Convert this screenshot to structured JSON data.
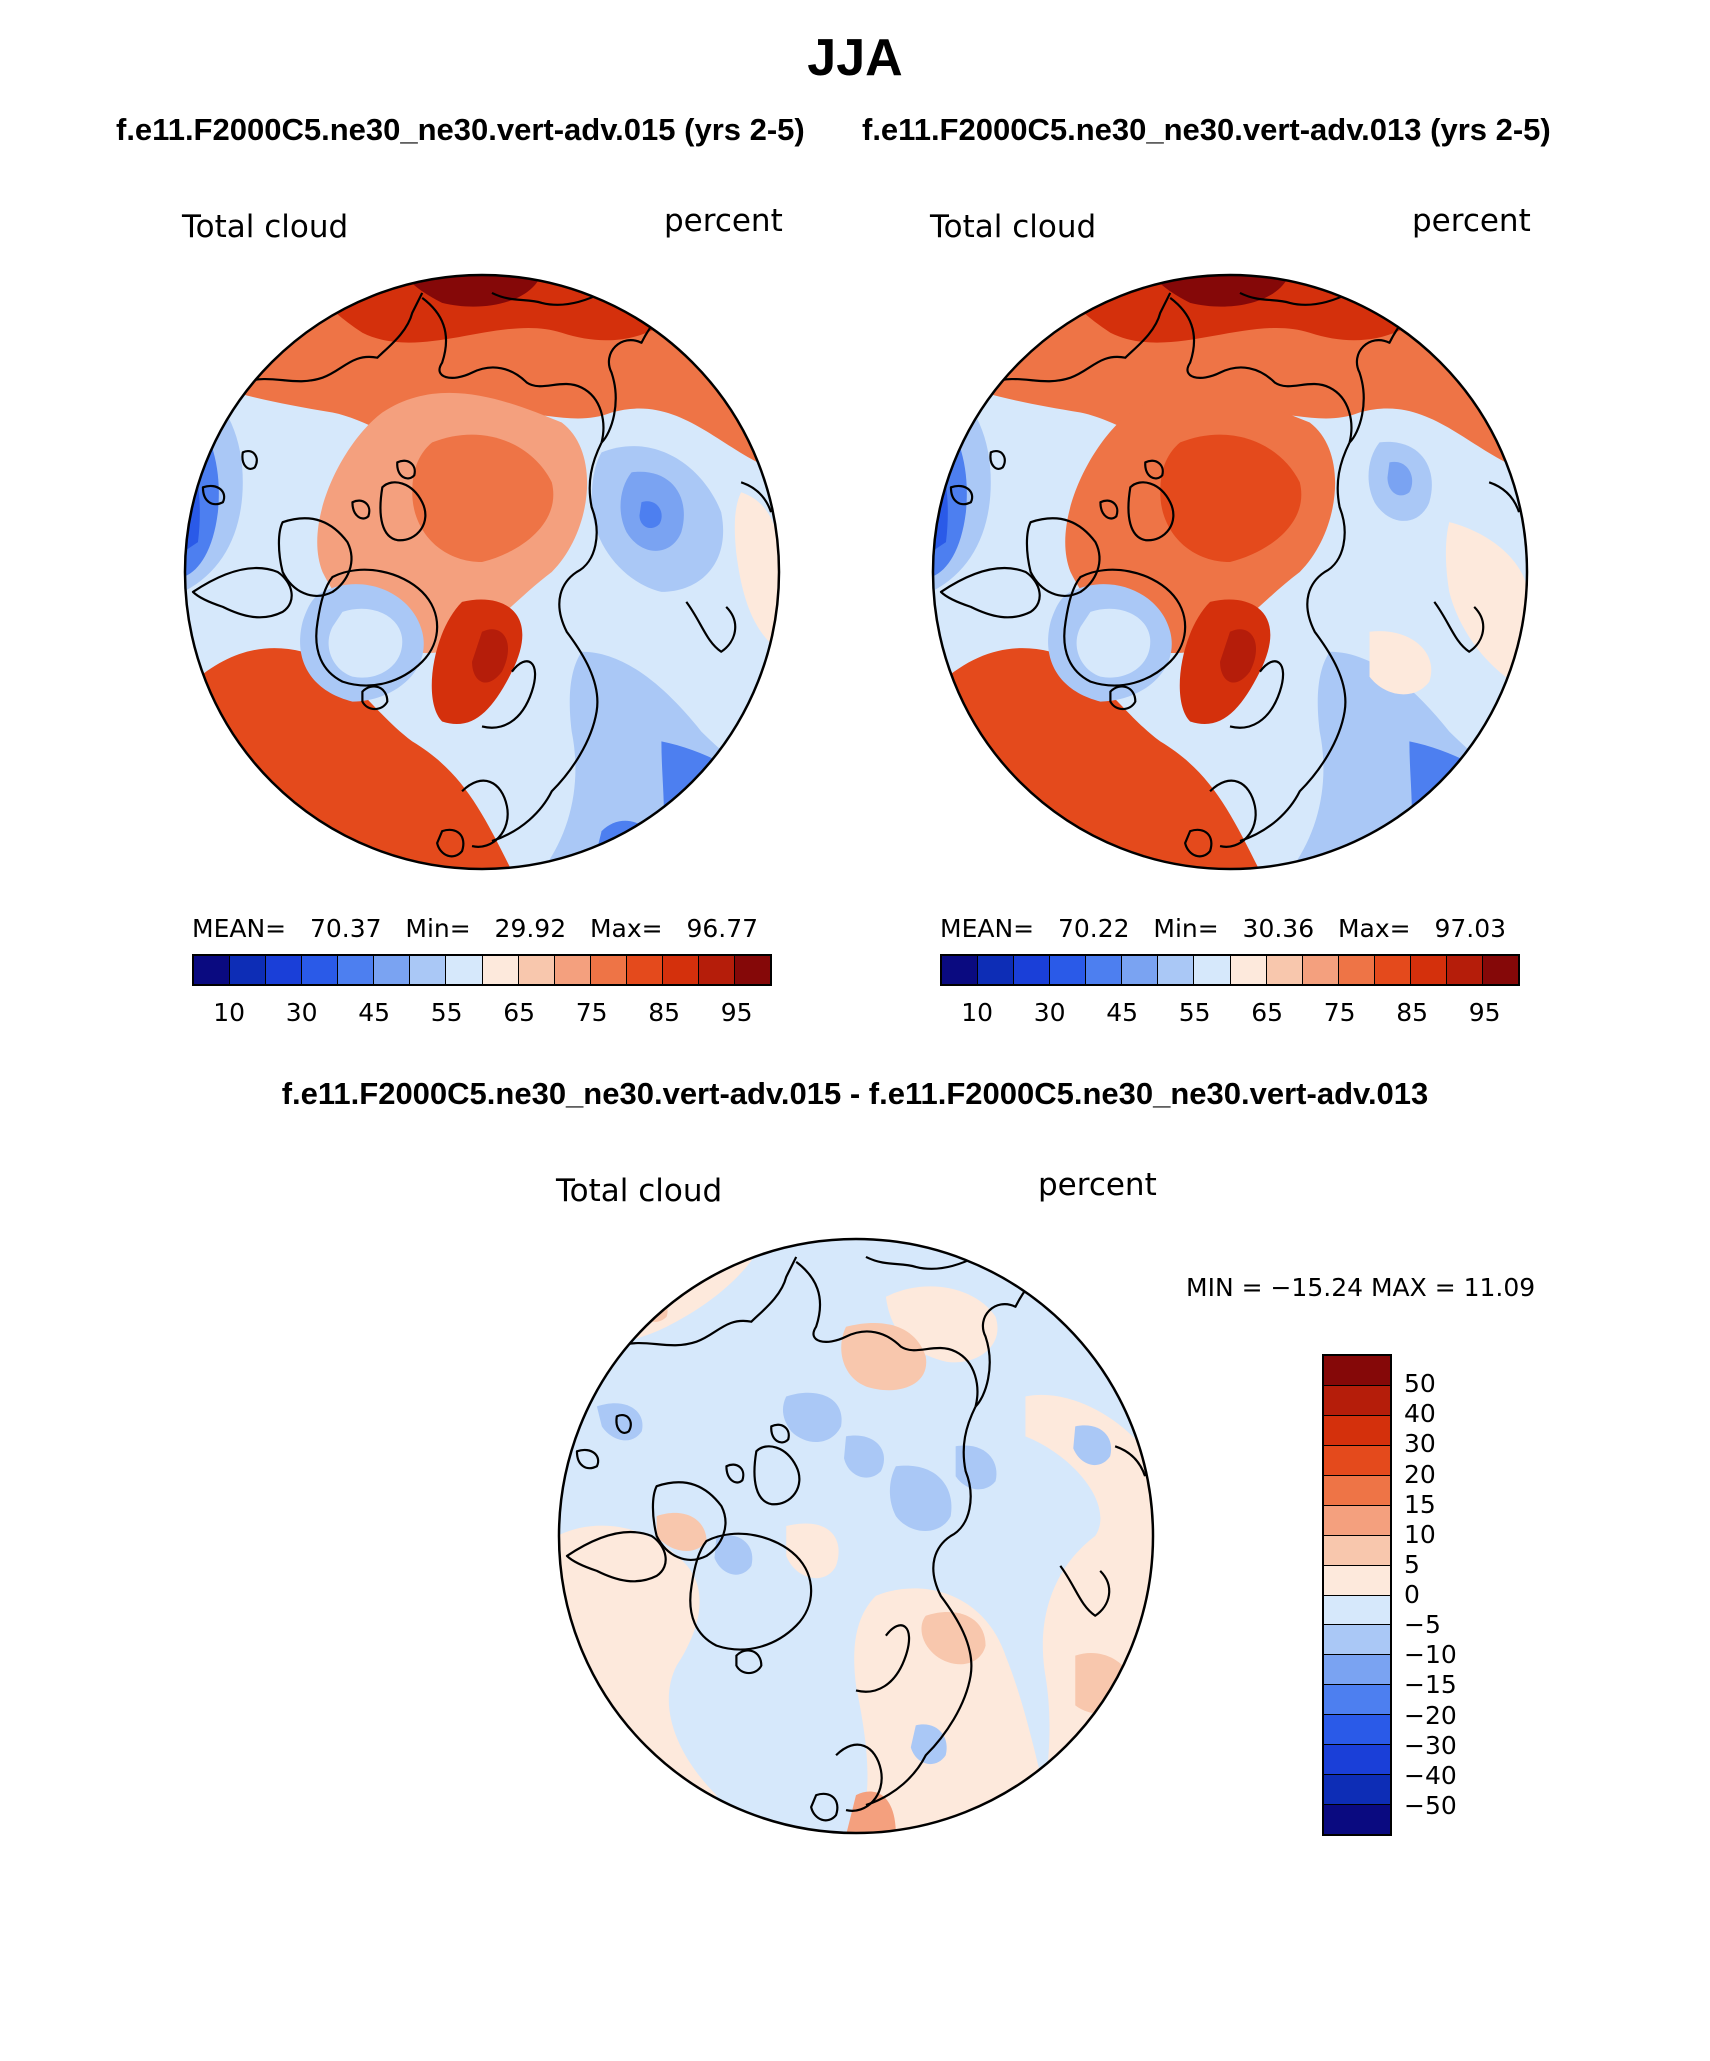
{
  "title": "JJA",
  "panels": {
    "left": {
      "header": "f.e11.F2000C5.ne30_ne30.vert-adv.015 (yrs 2-5)",
      "variable": "Total cloud",
      "units": "percent",
      "stats": {
        "mean_label": "MEAN=",
        "mean": "70.37",
        "min_label": "Min=",
        "min": "29.92",
        "max_label": "Max=",
        "max": "96.77"
      }
    },
    "right": {
      "header": "f.e11.F2000C5.ne30_ne30.vert-adv.013 (yrs 2-5)",
      "variable": "Total cloud",
      "units": "percent",
      "stats": {
        "mean_label": "MEAN=",
        "mean": "70.22",
        "min_label": "Min=",
        "min": "30.36",
        "max_label": "Max=",
        "max": "97.03"
      }
    },
    "diff": {
      "header": "f.e11.F2000C5.ne30_ne30.vert-adv.015 - f.e11.F2000C5.ne30_ne30.vert-adv.013",
      "variable": "Total cloud",
      "units": "percent",
      "minmax": "MIN = −15.24 MAX =   11.09"
    }
  },
  "colorbar_main": {
    "labels": [
      "10",
      "30",
      "45",
      "55",
      "65",
      "75",
      "85",
      "95"
    ],
    "colors": [
      "#0a0a80",
      "#0d2db6",
      "#1a3fd8",
      "#2a5ae8",
      "#4d7ff0",
      "#7aa3f2",
      "#aac8f6",
      "#d6e8fb",
      "#fde9dc",
      "#f8c7ad",
      "#f4a07e",
      "#ee7446",
      "#e44a1c",
      "#d4300c",
      "#b51d0a",
      "#850808"
    ]
  },
  "colorbar_diff": {
    "labels": [
      "50",
      "40",
      "30",
      "20",
      "15",
      "10",
      "5",
      "0",
      "−5",
      "−10",
      "−15",
      "−20",
      "−30",
      "−40",
      "−50"
    ],
    "colors": [
      "#850808",
      "#b51d0a",
      "#d4300c",
      "#e44a1c",
      "#ee7446",
      "#f4a07e",
      "#f8c7ad",
      "#fde9dc",
      "#d6e8fb",
      "#aac8f6",
      "#7aa3f2",
      "#4d7ff0",
      "#2a5ae8",
      "#1a3fd8",
      "#0d2db6",
      "#0a0a80"
    ]
  },
  "map_colors": {
    "ocean_mean_red": "#e8501e",
    "deep_red": "#b51d0a",
    "light_red": "#f4a07e",
    "pale": "#fde9dc",
    "light_blue": "#d6e8fb",
    "mid_blue": "#aac8f6",
    "blue": "#4d7ff0",
    "dark_blue": "#2a5ae8"
  }
}
